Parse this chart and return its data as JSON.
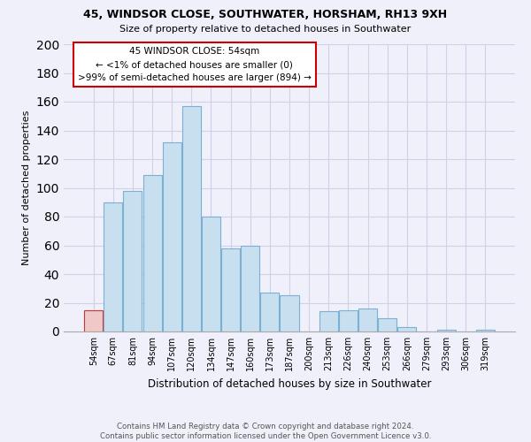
{
  "title1": "45, WINDSOR CLOSE, SOUTHWATER, HORSHAM, RH13 9XH",
  "title2": "Size of property relative to detached houses in Southwater",
  "xlabel": "Distribution of detached houses by size in Southwater",
  "ylabel": "Number of detached properties",
  "footnote1": "Contains HM Land Registry data © Crown copyright and database right 2024.",
  "footnote2": "Contains public sector information licensed under the Open Government Licence v3.0.",
  "bar_labels": [
    "54sqm",
    "67sqm",
    "81sqm",
    "94sqm",
    "107sqm",
    "120sqm",
    "134sqm",
    "147sqm",
    "160sqm",
    "173sqm",
    "187sqm",
    "200sqm",
    "213sqm",
    "226sqm",
    "240sqm",
    "253sqm",
    "266sqm",
    "279sqm",
    "293sqm",
    "306sqm",
    "319sqm"
  ],
  "bar_values": [
    15,
    90,
    98,
    109,
    132,
    157,
    80,
    58,
    60,
    27,
    25,
    0,
    14,
    15,
    16,
    9,
    3,
    0,
    1,
    0,
    1
  ],
  "bar_color": "#c8dff0",
  "bar_edge_color": "#7ab0d4",
  "highlight_bar_color": "#f0c8c8",
  "highlight_bar_edge_color": "#cc3333",
  "highlight_index": 0,
  "ylim": [
    0,
    200
  ],
  "yticks": [
    0,
    20,
    40,
    60,
    80,
    100,
    120,
    140,
    160,
    180,
    200
  ],
  "annotation_line1": "45 WINDSOR CLOSE: 54sqm",
  "annotation_line2": "← <1% of detached houses are smaller (0)",
  "annotation_line3": ">99% of semi-detached houses are larger (894) →",
  "annotation_box_color": "#ffffff",
  "annotation_border_color": "#cc0000",
  "background_color": "#f0f0fa",
  "grid_color": "#d0d0e8"
}
